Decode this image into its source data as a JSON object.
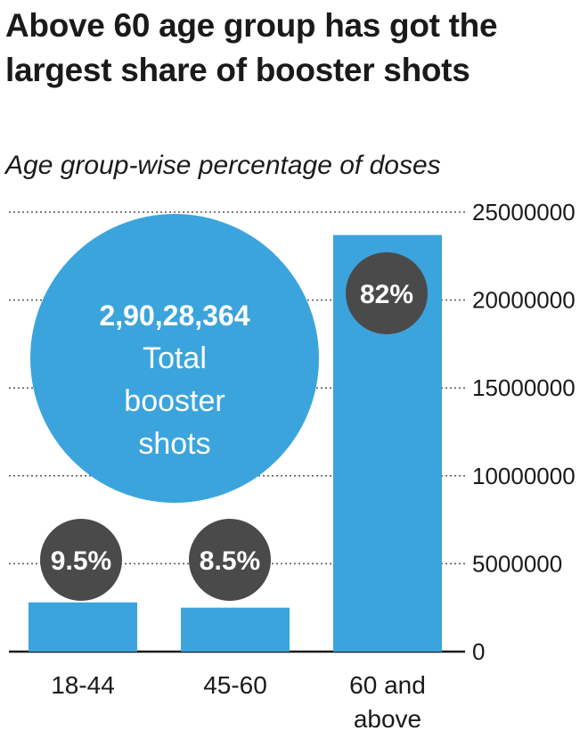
{
  "title": "Above 60 age group has got the largest share of booster shots",
  "subtitle": "Age group-wise percentage of doses",
  "total_callout": {
    "number": "2,90,28,364",
    "line1": "Total",
    "line2": "booster",
    "line3": "shots"
  },
  "colors": {
    "bar": "#3ba4dc",
    "circle": "#3ba4dc",
    "badge": "#4a4a4a",
    "grid": "#555555",
    "axis": "#1a1a1a"
  },
  "chart_data": {
    "type": "bar",
    "categories": [
      [
        "18-44"
      ],
      [
        "45-60"
      ],
      [
        "60 and",
        "above"
      ]
    ],
    "values": [
      2800000,
      2500000,
      23700000
    ],
    "percent_labels": [
      "9.5%",
      "8.5%",
      "82%"
    ],
    "y_ticks": [
      "0",
      "5000000",
      "10000000",
      "15000000",
      "20000000",
      "25000000"
    ],
    "ylim": [
      0,
      25000000
    ],
    "y_axis_side": "right",
    "grid": "dotted horizontal"
  }
}
